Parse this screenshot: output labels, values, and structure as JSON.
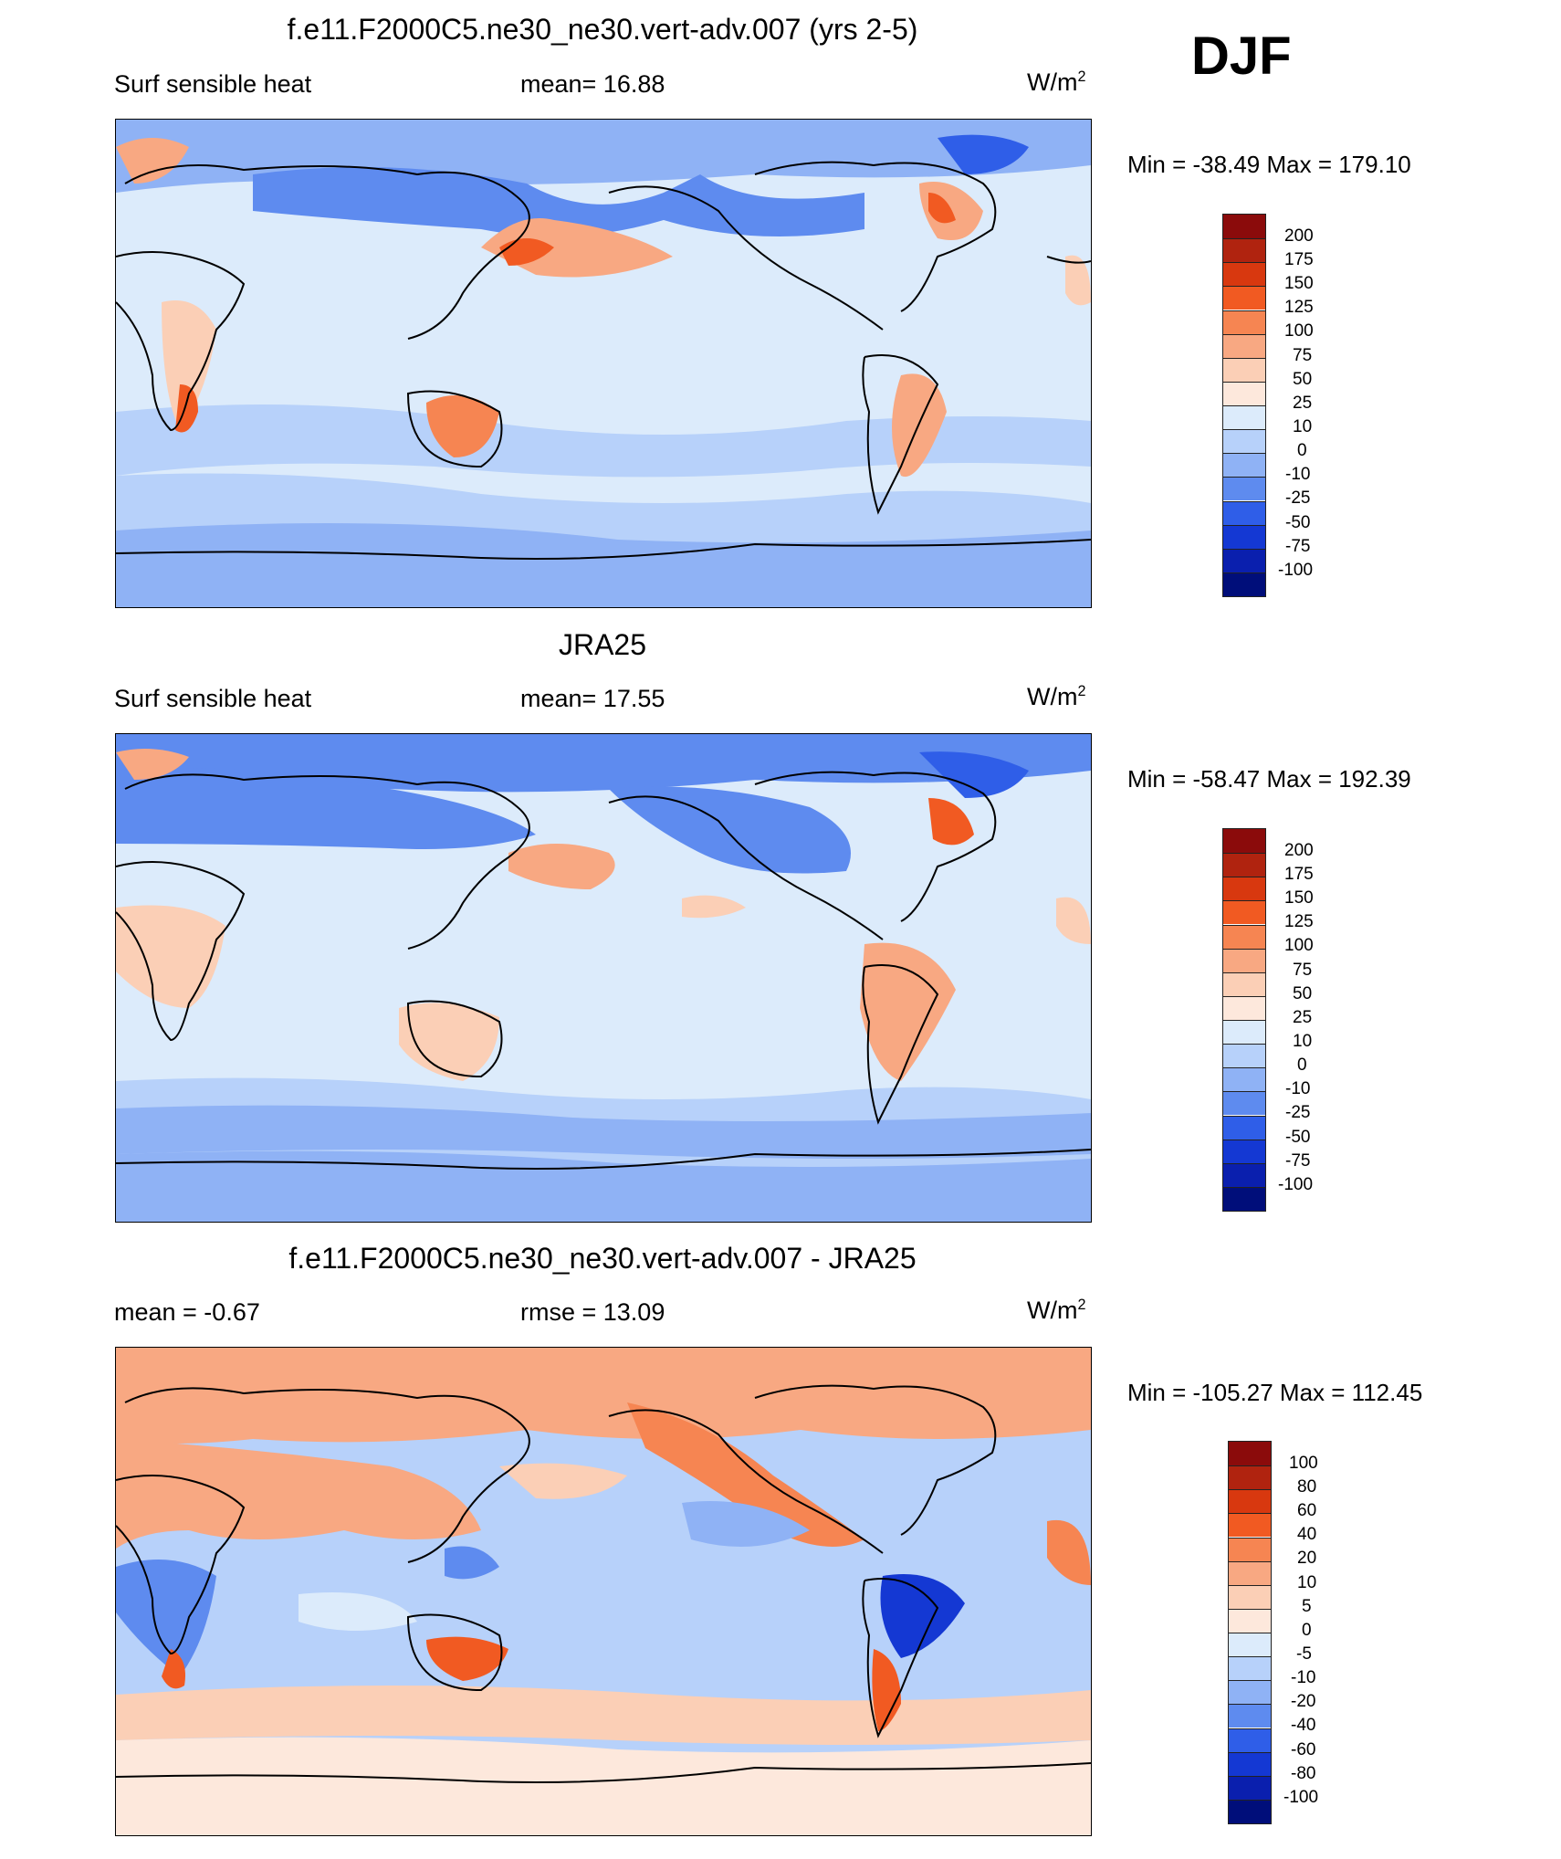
{
  "season": "DJF",
  "panels": [
    {
      "id": "model",
      "title": "f.e11.F2000C5.ne30_ne30.vert-adv.007 (yrs 2-5)",
      "left_label": "Surf sensible heat",
      "center_label": "mean=  16.88",
      "units_base": "W/m",
      "units_sup": "2",
      "minmax": "Min = -38.49 Max = 179.10",
      "colorbar_labels": [
        "200",
        "175",
        "150",
        "125",
        "100",
        "75",
        "50",
        "25",
        "10",
        "0",
        "-10",
        "-25",
        "-50",
        "-75",
        "-100"
      ]
    },
    {
      "id": "obs",
      "title": "JRA25",
      "left_label": "Surf sensible heat",
      "center_label": "mean=  17.55",
      "units_base": "W/m",
      "units_sup": "2",
      "minmax": "Min = -58.47 Max = 192.39",
      "colorbar_labels": [
        "200",
        "175",
        "150",
        "125",
        "100",
        "75",
        "50",
        "25",
        "10",
        "0",
        "-10",
        "-25",
        "-50",
        "-75",
        "-100"
      ]
    },
    {
      "id": "diff",
      "title": "f.e11.F2000C5.ne30_ne30.vert-adv.007 - JRA25",
      "left_label": "mean =  -0.67",
      "center_label": "rmse =  13.09",
      "units_base": "W/m",
      "units_sup": "2",
      "minmax": "Min = -105.27 Max = 112.45",
      "colorbar_labels": [
        "100",
        "80",
        "60",
        "40",
        "20",
        "10",
        "5",
        "0",
        "-5",
        "-10",
        "-20",
        "-40",
        "-60",
        "-80",
        "-100"
      ]
    }
  ],
  "colorbar_colors": [
    "#8b0b0b",
    "#b0230f",
    "#d8380f",
    "#f15a22",
    "#f68552",
    "#f8a882",
    "#fbcfb6",
    "#fde8dc",
    "#dcebfb",
    "#b7d1fa",
    "#8fb2f5",
    "#5e8bef",
    "#2f5ee8",
    "#1438d3",
    "#0a1fae",
    "#000e7a"
  ]
}
